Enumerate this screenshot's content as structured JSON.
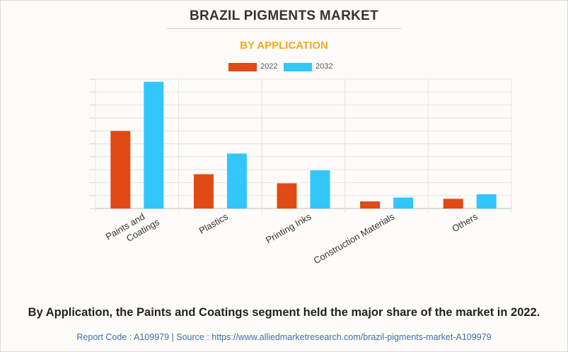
{
  "header": {
    "title": "BRAZIL PIGMENTS MARKET",
    "subtitle": "BY APPLICATION"
  },
  "legend": [
    {
      "label": "2022",
      "color": "#e04a14"
    },
    {
      "label": "2032",
      "color": "#33c6fb"
    }
  ],
  "chart_data": {
    "type": "bar",
    "categories": [
      "Paints and Coatings",
      "Plastics",
      "Printing Inks",
      "Construction Materials",
      "Others"
    ],
    "category_lines": [
      [
        "Paints and",
        "Coatings"
      ],
      [
        "Plastics"
      ],
      [
        "Printing Inks"
      ],
      [
        "Construction Materials"
      ],
      [
        "Others"
      ]
    ],
    "series": [
      {
        "name": "2022",
        "color": "#e04a14",
        "values": [
          6.0,
          2.65,
          1.95,
          0.55,
          0.75
        ]
      },
      {
        "name": "2032",
        "color": "#33c6fb",
        "values": [
          9.8,
          4.25,
          2.95,
          0.85,
          1.1
        ]
      }
    ],
    "ylim": [
      0,
      10
    ],
    "grid": true,
    "legend_position": "top-center",
    "xlabel": "",
    "ylabel": ""
  },
  "footer": {
    "caption": "By Application, the Paints and Coatings segment held the major share of the market in 2022.",
    "report_code": "Report Code : A109979  |  Source : https://www.alliedmarketresearch.com/brazil-pigments-market-A109979"
  }
}
